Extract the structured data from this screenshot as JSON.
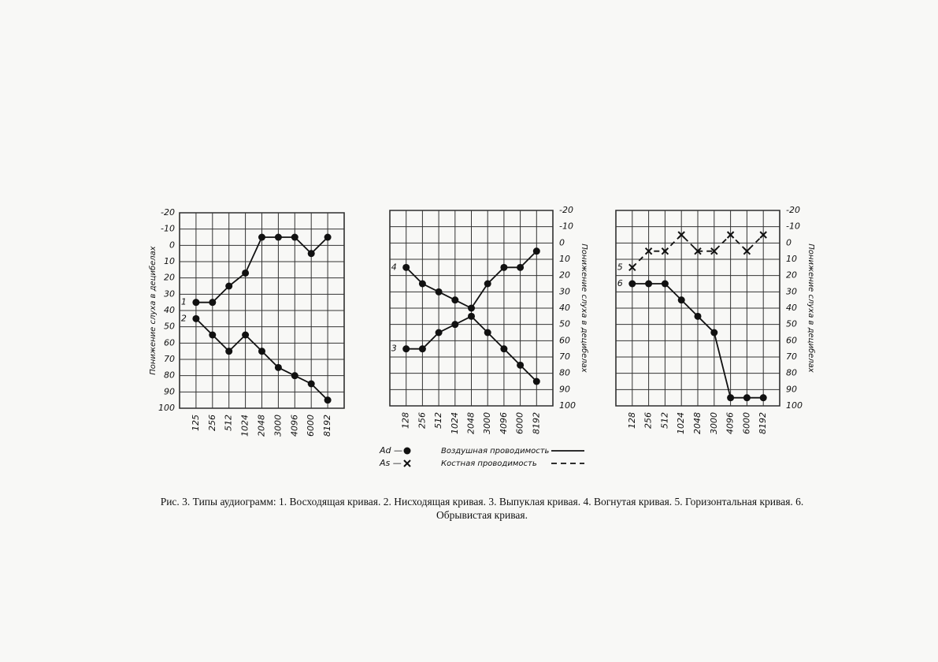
{
  "chart_data": [
    {
      "type": "line",
      "y_label": "Понижение слуха в децибелах",
      "yaxis_side": "left",
      "y_inverted": true,
      "grid": true,
      "categories": [
        "125",
        "256",
        "512",
        "1024",
        "2048",
        "3000",
        "4096",
        "6000",
        "8192"
      ],
      "ylim": [
        -20,
        100
      ],
      "yticks": [
        -20,
        -10,
        0,
        10,
        20,
        30,
        40,
        50,
        60,
        70,
        80,
        90,
        100
      ],
      "series": [
        {
          "name": "1",
          "color": "#111111",
          "line_style": "solid",
          "marker": "dot",
          "values": [
            35,
            35,
            25,
            17,
            -5,
            -5,
            -5,
            5,
            -5
          ]
        },
        {
          "name": "2",
          "color": "#111111",
          "line_style": "solid",
          "marker": "dot",
          "values": [
            45,
            55,
            65,
            55,
            65,
            75,
            80,
            85,
            95
          ]
        }
      ]
    },
    {
      "type": "line",
      "y_label": "Понижение слуха в децибелах",
      "yaxis_side": "right",
      "y_inverted": true,
      "grid": true,
      "categories": [
        "128",
        "256",
        "512",
        "1024",
        "2048",
        "3000",
        "4096",
        "6000",
        "8192"
      ],
      "ylim": [
        -20,
        100
      ],
      "yticks": [
        -20,
        -10,
        0,
        10,
        20,
        30,
        40,
        50,
        60,
        70,
        80,
        90,
        100
      ],
      "series": [
        {
          "name": "4",
          "color": "#111111",
          "line_style": "solid",
          "marker": "dot",
          "values": [
            15,
            25,
            30,
            35,
            40,
            25,
            15,
            15,
            5
          ]
        },
        {
          "name": "3",
          "color": "#111111",
          "line_style": "solid",
          "marker": "dot",
          "values": [
            65,
            65,
            55,
            50,
            45,
            55,
            65,
            75,
            85
          ]
        }
      ]
    },
    {
      "type": "line",
      "y_label": "Понижение слуха в децибелах",
      "yaxis_side": "right",
      "y_inverted": true,
      "grid": true,
      "categories": [
        "128",
        "256",
        "512",
        "1024",
        "2048",
        "3000",
        "4096",
        "6000",
        "8192"
      ],
      "ylim": [
        -20,
        100
      ],
      "yticks": [
        -20,
        -10,
        0,
        10,
        20,
        30,
        40,
        50,
        60,
        70,
        80,
        90,
        100
      ],
      "series": [
        {
          "name": "5",
          "color": "#111111",
          "line_style": "dashed",
          "marker": "cross",
          "values": [
            15,
            5,
            5,
            -5,
            5,
            5,
            -5,
            5,
            -5
          ]
        },
        {
          "name": "6",
          "color": "#111111",
          "line_style": "solid",
          "marker": "dot",
          "values": [
            25,
            25,
            25,
            35,
            45,
            55,
            95,
            95,
            95
          ]
        }
      ]
    }
  ],
  "legend": {
    "items": [
      {
        "key": "Ad —",
        "label": "Воздушная проводимость",
        "line_style": "solid",
        "marker": "dot"
      },
      {
        "key": "As —",
        "label": "Костная проводимость",
        "line_style": "dashed",
        "marker": "cross"
      }
    ]
  },
  "caption": "Рис. 3. Типы аудиограмм: 1. Восходящая кривая. 2. Нисходящая кривая. 3. Выпуклая кривая. 4. Вогнутая кривая. 5. Горизонтальная кривая. 6. Обрывистая кривая."
}
